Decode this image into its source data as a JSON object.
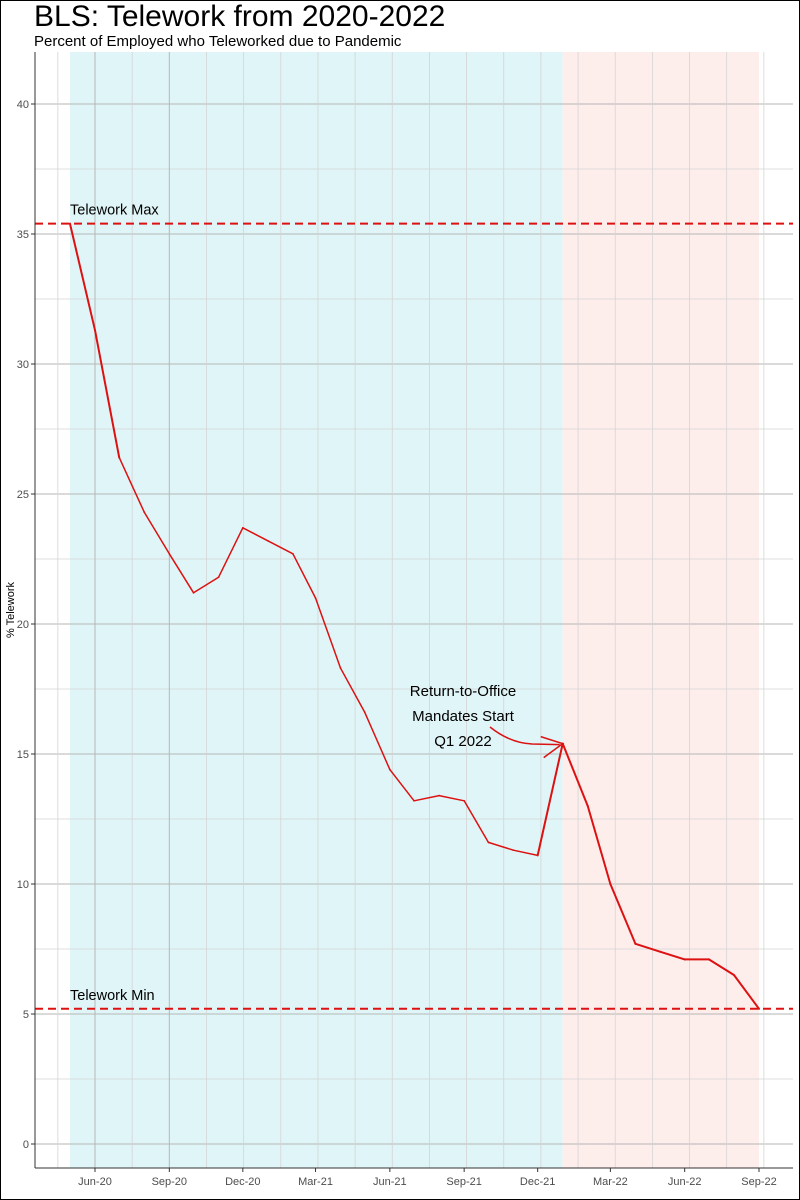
{
  "chart_data": {
    "type": "line",
    "title": "BLS:  Telework from 2020-2022",
    "subtitle": "Percent of Employed who Teleworked due to Pandemic",
    "xlabel": "",
    "ylabel": "% Telework",
    "ylim": [
      0,
      40
    ],
    "yticks": [
      0,
      5,
      10,
      15,
      20,
      25,
      30,
      35,
      40
    ],
    "xticks": [
      {
        "label": "Jun-20",
        "date": "2020-06-01"
      },
      {
        "label": "Sep-20",
        "date": "2020-09-01"
      },
      {
        "label": "Dec-20",
        "date": "2020-12-01"
      },
      {
        "label": "Mar-21",
        "date": "2021-03-01"
      },
      {
        "label": "Jun-21",
        "date": "2021-06-01"
      },
      {
        "label": "Sep-21",
        "date": "2021-09-01"
      },
      {
        "label": "Dec-21",
        "date": "2021-12-01"
      },
      {
        "label": "Mar-22",
        "date": "2022-03-01"
      },
      {
        "label": "Jun-22",
        "date": "2022-06-01"
      },
      {
        "label": "Sep-22",
        "date": "2022-09-01"
      }
    ],
    "grid": true,
    "series": [
      {
        "color": "#dd1111",
        "points": [
          {
            "x": "2020-05-01",
            "y": 35.4
          },
          {
            "x": "2020-06-01",
            "y": 31.3
          },
          {
            "x": "2020-07-01",
            "y": 26.4
          },
          {
            "x": "2020-08-01",
            "y": 24.3
          },
          {
            "x": "2020-09-01",
            "y": 22.7
          },
          {
            "x": "2020-10-01",
            "y": 21.2
          },
          {
            "x": "2020-11-01",
            "y": 21.8
          },
          {
            "x": "2020-12-01",
            "y": 23.7
          },
          {
            "x": "2021-01-01",
            "y": 23.2
          },
          {
            "x": "2021-02-01",
            "y": 22.7
          },
          {
            "x": "2021-03-01",
            "y": 21.0
          },
          {
            "x": "2021-04-01",
            "y": 18.3
          },
          {
            "x": "2021-05-01",
            "y": 16.6
          },
          {
            "x": "2021-06-01",
            "y": 14.4
          },
          {
            "x": "2021-07-01",
            "y": 13.2
          },
          {
            "x": "2021-08-01",
            "y": 13.4
          },
          {
            "x": "2021-09-01",
            "y": 13.2
          },
          {
            "x": "2021-10-01",
            "y": 11.6
          },
          {
            "x": "2021-11-01",
            "y": 11.3
          },
          {
            "x": "2021-12-01",
            "y": 11.1
          },
          {
            "x": "2022-01-01",
            "y": 15.4
          },
          {
            "x": "2022-02-01",
            "y": 13.0
          },
          {
            "x": "2022-03-01",
            "y": 10.0
          },
          {
            "x": "2022-04-01",
            "y": 7.7
          },
          {
            "x": "2022-05-01",
            "y": 7.4
          },
          {
            "x": "2022-06-01",
            "y": 7.1
          },
          {
            "x": "2022-07-01",
            "y": 7.1
          },
          {
            "x": "2022-08-01",
            "y": 6.5
          },
          {
            "x": "2022-09-01",
            "y": 5.2
          }
        ]
      }
    ],
    "reference_lines": [
      {
        "label": "Telework Max",
        "y": 35.4,
        "color": "#dd1111"
      },
      {
        "label": "Telework Min",
        "y": 5.2,
        "color": "#dd1111"
      }
    ],
    "shaded_regions": [
      {
        "from": "2020-05-01",
        "to": "2022-01-01",
        "color": "#e0f5f7"
      },
      {
        "from": "2022-01-01",
        "to": "2022-09-01",
        "color": "#fdeeec"
      }
    ],
    "annotation": {
      "lines": [
        "Return-to-Office",
        "Mandates Start",
        "Q1 2022"
      ],
      "target": {
        "x": "2022-01-01",
        "y": 15.4
      }
    }
  }
}
